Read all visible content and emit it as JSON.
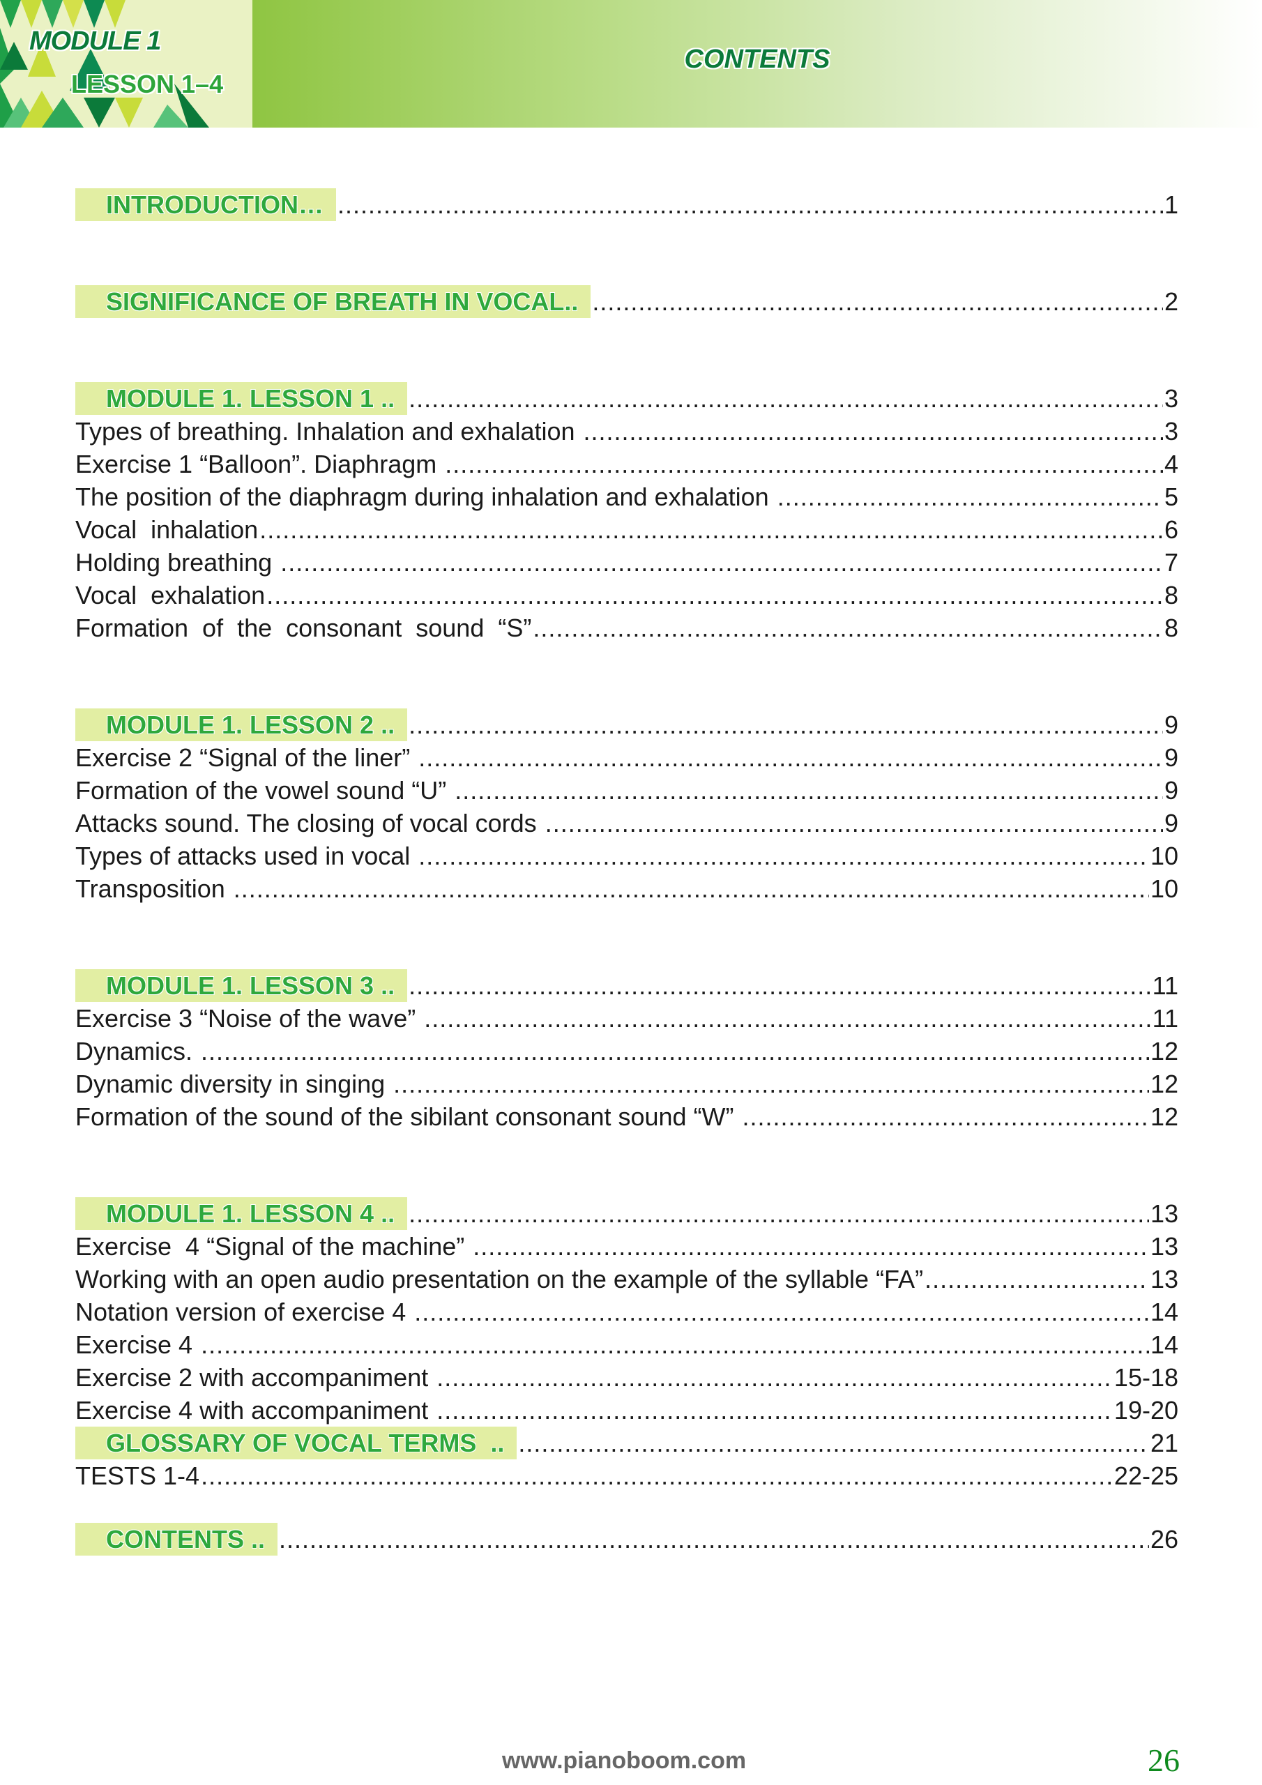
{
  "header": {
    "module": "MODULE 1",
    "lesson": "LESSON  1–4",
    "title": "CONTENTS",
    "accent": "#8fc542"
  },
  "sections": [
    {
      "rows": [
        {
          "label": "INTRODUCTION…",
          "page": "1",
          "heading": true
        }
      ]
    },
    {
      "rows": [
        {
          "label": "SIGNIFICANCE OF BREATH IN VOCAL..",
          "page": "2",
          "heading": true
        }
      ]
    },
    {
      "rows": [
        {
          "label": "MODULE 1. LESSON 1 ..",
          "page": "3",
          "heading": true
        },
        {
          "label": "Types of breathing. Inhalation and exhalation ",
          "page": "3"
        },
        {
          "label": "Exercise 1 “Balloon”. Diaphragm ",
          "page": "4"
        },
        {
          "label": "The position of the diaphragm during inhalation and exhalation ",
          "page": "5"
        },
        {
          "label": "Vocal  inhalation",
          "page": "6"
        },
        {
          "label": "Holding breathing ",
          "page": "7"
        },
        {
          "label": "Vocal  exhalation",
          "page": "8"
        },
        {
          "label": "Formation  of  the  consonant  sound  “S”",
          "page": "8"
        }
      ]
    },
    {
      "rows": [
        {
          "label": "MODULE 1. LESSON 2 ..",
          "page": "9",
          "heading": true
        },
        {
          "label": "Exercise 2 “Signal of the liner” ",
          "page": "9"
        },
        {
          "label": "Formation of the vowel sound “U” ",
          "page": "9"
        },
        {
          "label": "Attacks sound. The closing of vocal cords ",
          "page": "9"
        },
        {
          "label": "Types of attacks used in vocal ",
          "page": "10"
        },
        {
          "label": "Transposition ",
          "page": "10"
        }
      ]
    },
    {
      "rows": [
        {
          "label": "MODULE 1. LESSON 3 ..",
          "page": "11",
          "heading": true
        },
        {
          "label": "Exercise 3 “Noise of the wave” ",
          "page": "11"
        },
        {
          "label": "Dynamics. ",
          "page": "12"
        },
        {
          "label": "Dynamic diversity in singing ",
          "page": "12"
        },
        {
          "label": "Formation of the sound of the sibilant consonant sound “W” ",
          "page": "12"
        }
      ]
    },
    {
      "rows": [
        {
          "label": "MODULE 1. LESSON 4 ..",
          "page": "13",
          "heading": true
        },
        {
          "label": "Exercise  4 “Signal of the machine” ",
          "page": "13"
        },
        {
          "label": "Working with an open audio presentation on the example of the syllable “FA”",
          "page": "13"
        },
        {
          "label": "Notation version of exercise 4 ",
          "page": "14"
        },
        {
          "label": "Exercise 4 ",
          "page": "14"
        },
        {
          "label": "Exercise 2 with accompaniment ",
          "page": "15-18"
        },
        {
          "label": "Exercise 4 with accompaniment ",
          "page": "19-20"
        },
        {
          "label": "GLOSSARY OF VOCAL TERMS  ..",
          "page": "21",
          "heading": true
        },
        {
          "label": "TESTS 1-4",
          "page": "22-25 "
        }
      ]
    },
    {
      "rows": [
        {
          "label": "CONTENTS ..",
          "page": "26",
          "heading": true
        }
      ]
    }
  ],
  "footer": {
    "url": "www.pianoboom.com",
    "page_number": "26"
  }
}
